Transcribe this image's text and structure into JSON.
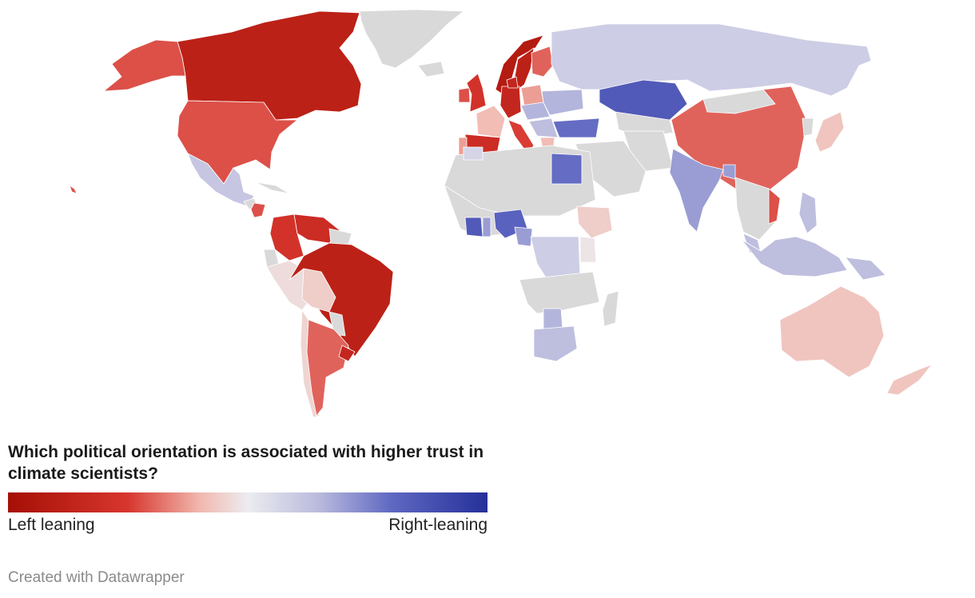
{
  "map": {
    "type": "choropleth",
    "no_data_color": "#d9d9d9",
    "scale_colors": [
      "#a50f05",
      "#d7362e",
      "#f1b8ae",
      "#ececf0",
      "#b9b9dd",
      "#5f68c2",
      "#25309a"
    ],
    "regions": [
      {
        "id": "greenland",
        "name": "Greenland",
        "value": null
      },
      {
        "id": "canada",
        "name": "Canada",
        "value": -0.85
      },
      {
        "id": "alaska",
        "name": "Alaska",
        "value": -0.6
      },
      {
        "id": "usa",
        "name": "United States",
        "value": -0.6
      },
      {
        "id": "hawaii",
        "name": "Hawaii",
        "value": -0.6
      },
      {
        "id": "mexico",
        "name": "Mexico",
        "value": 0.25
      },
      {
        "id": "guatemala",
        "name": "Guatemala",
        "value": null
      },
      {
        "id": "honduras",
        "name": "Honduras",
        "value": -0.6
      },
      {
        "id": "cuba",
        "name": "Cuba",
        "value": null
      },
      {
        "id": "colombia",
        "name": "Colombia",
        "value": -0.7
      },
      {
        "id": "venezuela",
        "name": "Venezuela",
        "value": -0.75
      },
      {
        "id": "guyanas",
        "name": "Guianas",
        "value": null
      },
      {
        "id": "ecuador",
        "name": "Ecuador",
        "value": null
      },
      {
        "id": "peru",
        "name": "Peru",
        "value": -0.1
      },
      {
        "id": "brazil",
        "name": "Brazil",
        "value": -0.85
      },
      {
        "id": "bolivia",
        "name": "Bolivia",
        "value": -0.2
      },
      {
        "id": "paraguay",
        "name": "Paraguay",
        "value": null
      },
      {
        "id": "chile",
        "name": "Chile",
        "value": -0.15
      },
      {
        "id": "argentina",
        "name": "Argentina",
        "value": -0.55
      },
      {
        "id": "uruguay",
        "name": "Uruguay",
        "value": -0.8
      },
      {
        "id": "iceland",
        "name": "Iceland",
        "value": null
      },
      {
        "id": "norway",
        "name": "Norway",
        "value": -0.9
      },
      {
        "id": "sweden",
        "name": "Sweden",
        "value": -0.85
      },
      {
        "id": "finland",
        "name": "Finland",
        "value": -0.55
      },
      {
        "id": "uk",
        "name": "United Kingdom",
        "value": -0.7
      },
      {
        "id": "ireland",
        "name": "Ireland",
        "value": -0.6
      },
      {
        "id": "france",
        "name": "France",
        "value": -0.3
      },
      {
        "id": "spain",
        "name": "Spain",
        "value": -0.75
      },
      {
        "id": "portugal",
        "name": "Portugal",
        "value": -0.4
      },
      {
        "id": "germany",
        "name": "Germany",
        "value": -0.8
      },
      {
        "id": "denmark",
        "name": "Denmark",
        "value": -0.8
      },
      {
        "id": "poland",
        "name": "Poland",
        "value": -0.4
      },
      {
        "id": "italy",
        "name": "Italy",
        "value": -0.65
      },
      {
        "id": "central_europe",
        "name": "Central Europe",
        "value": 0.35
      },
      {
        "id": "ukraine",
        "name": "Ukraine",
        "value": 0.35
      },
      {
        "id": "balkans",
        "name": "Balkans",
        "value": 0.3
      },
      {
        "id": "greece",
        "name": "Greece",
        "value": -0.3
      },
      {
        "id": "turkey",
        "name": "Turkey",
        "value": 0.65
      },
      {
        "id": "russia",
        "name": "Russia",
        "value": 0.2
      },
      {
        "id": "kazakhstan",
        "name": "Kazakhstan",
        "value": 0.75
      },
      {
        "id": "central_asia",
        "name": "Central Asia",
        "value": null
      },
      {
        "id": "middle_east",
        "name": "Middle East",
        "value": null
      },
      {
        "id": "iran",
        "name": "Iran",
        "value": null
      },
      {
        "id": "china",
        "name": "China",
        "value": -0.55
      },
      {
        "id": "mongolia",
        "name": "Mongolia",
        "value": null
      },
      {
        "id": "india",
        "name": "India",
        "value": 0.45
      },
      {
        "id": "bangladesh",
        "name": "Bangladesh",
        "value": 0.45
      },
      {
        "id": "southeast_asia",
        "name": "Southeast Asia",
        "value": null
      },
      {
        "id": "vietnam",
        "name": "Vietnam",
        "value": -0.6
      },
      {
        "id": "japan",
        "name": "Japan",
        "value": -0.25
      },
      {
        "id": "korea",
        "name": "Korea",
        "value": null
      },
      {
        "id": "philippines",
        "name": "Philippines",
        "value": 0.3
      },
      {
        "id": "malaysia",
        "name": "Malaysia",
        "value": 0.3
      },
      {
        "id": "indonesia",
        "name": "Indonesia",
        "value": 0.3
      },
      {
        "id": "png",
        "name": "Papua New Guinea",
        "value": 0.3
      },
      {
        "id": "australia",
        "name": "Australia",
        "value": -0.25
      },
      {
        "id": "new_zealand",
        "name": "New Zealand",
        "value": -0.25
      },
      {
        "id": "north_africa",
        "name": "North Africa",
        "value": null
      },
      {
        "id": "morocco",
        "name": "Morocco",
        "value": 0.15
      },
      {
        "id": "egypt",
        "name": "Egypt",
        "value": 0.65
      },
      {
        "id": "west_africa",
        "name": "West Africa",
        "value": null
      },
      {
        "id": "ivory_coast",
        "name": "Côte d'Ivoire",
        "value": 0.75
      },
      {
        "id": "ghana",
        "name": "Ghana",
        "value": 0.45
      },
      {
        "id": "nigeria",
        "name": "Nigeria",
        "value": 0.7
      },
      {
        "id": "cameroon",
        "name": "Cameroon",
        "value": 0.45
      },
      {
        "id": "ethiopia",
        "name": "Ethiopia",
        "value": -0.2
      },
      {
        "id": "kenya",
        "name": "Kenya",
        "value": -0.05
      },
      {
        "id": "central_africa",
        "name": "Central Africa",
        "value": 0.2
      },
      {
        "id": "southern_africa",
        "name": "Southern Africa",
        "value": null
      },
      {
        "id": "zimbabwe",
        "name": "Zimbabwe",
        "value": 0.35
      },
      {
        "id": "south_africa",
        "name": "South Africa",
        "value": 0.3
      },
      {
        "id": "madagascar",
        "name": "Madagascar",
        "value": null
      }
    ]
  },
  "legend": {
    "title": "Which political orientation is associated with higher trust in climate scientists?",
    "left_label": "Left leaning",
    "right_label": "Right-leaning"
  },
  "credit": "Created with Datawrapper"
}
